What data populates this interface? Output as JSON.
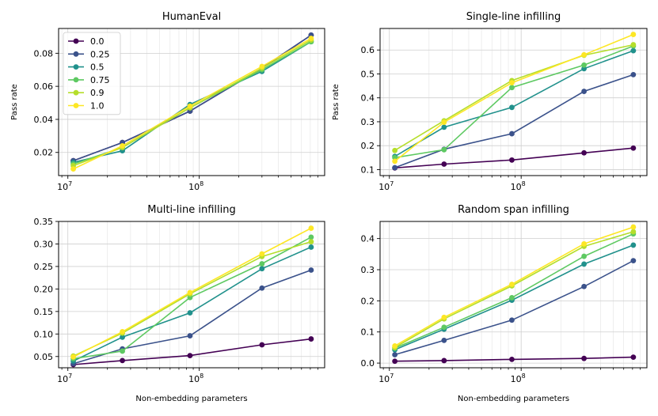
{
  "chart_data": [
    {
      "type": "line",
      "title": "HumanEval",
      "xlabel": "",
      "ylabel": "Pass rate",
      "xscale": "log",
      "x": [
        11000000,
        26000000,
        85000000,
        300000000,
        710000000
      ],
      "xlim": [
        8500000,
        900000000
      ],
      "xticks": [
        {
          "value": 10000000,
          "base": "10",
          "exp": "7"
        },
        {
          "value": 100000000,
          "base": "10",
          "exp": "8"
        }
      ],
      "ylim": [
        0.006,
        0.095
      ],
      "yticks": [
        "0.02",
        "0.04",
        "0.06",
        "0.08"
      ],
      "grid": true,
      "legend": "top-left",
      "series": [
        {
          "name": "0.0",
          "color": "#440154",
          "values": [
            0.015,
            0.026,
            0.045,
            0.071,
            0.091
          ]
        },
        {
          "name": "0.25",
          "color": "#3b528b",
          "values": [
            0.015,
            0.026,
            0.045,
            0.071,
            0.091
          ]
        },
        {
          "name": "0.5",
          "color": "#21918c",
          "values": [
            0.014,
            0.021,
            0.049,
            0.069,
            0.087
          ]
        },
        {
          "name": "0.75",
          "color": "#5ec962",
          "values": [
            0.013,
            0.023,
            0.047,
            0.07,
            0.087
          ]
        },
        {
          "name": "0.9",
          "color": "#b5de2b",
          "values": [
            0.012,
            0.023,
            0.047,
            0.071,
            0.088
          ]
        },
        {
          "name": "1.0",
          "color": "#fde725",
          "values": [
            0.01,
            0.024,
            0.048,
            0.072,
            0.089
          ]
        }
      ]
    },
    {
      "type": "line",
      "title": "Single-line infilling",
      "xlabel": "",
      "ylabel": "Pass rate",
      "xscale": "log",
      "x": [
        11000000,
        26000000,
        85000000,
        300000000,
        710000000
      ],
      "xlim": [
        8500000,
        900000000
      ],
      "xticks": [
        {
          "value": 10000000,
          "base": "10",
          "exp": "7"
        },
        {
          "value": 100000000,
          "base": "10",
          "exp": "8"
        }
      ],
      "ylim": [
        0.075,
        0.69
      ],
      "yticks": [
        "0.1",
        "0.2",
        "0.3",
        "0.4",
        "0.5",
        "0.6"
      ],
      "grid": true,
      "series": [
        {
          "name": "0.0",
          "color": "#440154",
          "values": [
            0.107,
            0.123,
            0.14,
            0.17,
            0.19
          ]
        },
        {
          "name": "0.25",
          "color": "#3b528b",
          "values": [
            0.108,
            0.185,
            0.25,
            0.427,
            0.497
          ]
        },
        {
          "name": "0.5",
          "color": "#21918c",
          "values": [
            0.155,
            0.277,
            0.36,
            0.522,
            0.597
          ]
        },
        {
          "name": "0.75",
          "color": "#5ec962",
          "values": [
            0.15,
            0.183,
            0.443,
            0.537,
            0.617
          ]
        },
        {
          "name": "0.9",
          "color": "#b5de2b",
          "values": [
            0.18,
            0.304,
            0.472,
            0.578,
            0.622
          ]
        },
        {
          "name": "1.0",
          "color": "#fde725",
          "values": [
            0.135,
            0.298,
            0.463,
            0.58,
            0.665
          ]
        }
      ]
    },
    {
      "type": "line",
      "title": "Multi-line infilling",
      "xlabel": "Non-embedding parameters",
      "ylabel": "",
      "xscale": "log",
      "x": [
        11000000,
        26000000,
        85000000,
        300000000,
        710000000
      ],
      "xlim": [
        8500000,
        900000000
      ],
      "xticks": [
        {
          "value": 10000000,
          "base": "10",
          "exp": "7"
        },
        {
          "value": 100000000,
          "base": "10",
          "exp": "8"
        }
      ],
      "ylim": [
        0.025,
        0.35
      ],
      "yticks": [
        "0.05",
        "0.10",
        "0.15",
        "0.20",
        "0.25",
        "0.30",
        "0.35"
      ],
      "grid": true,
      "series": [
        {
          "name": "0.0",
          "color": "#440154",
          "values": [
            0.032,
            0.041,
            0.052,
            0.076,
            0.089
          ]
        },
        {
          "name": "0.25",
          "color": "#3b528b",
          "values": [
            0.034,
            0.067,
            0.096,
            0.202,
            0.242
          ]
        },
        {
          "name": "0.5",
          "color": "#21918c",
          "values": [
            0.04,
            0.093,
            0.147,
            0.245,
            0.293
          ]
        },
        {
          "name": "0.75",
          "color": "#5ec962",
          "values": [
            0.045,
            0.062,
            0.181,
            0.256,
            0.315
          ]
        },
        {
          "name": "0.9",
          "color": "#b5de2b",
          "values": [
            0.051,
            0.102,
            0.189,
            0.272,
            0.305
          ]
        },
        {
          "name": "1.0",
          "color": "#fde725",
          "values": [
            0.049,
            0.105,
            0.192,
            0.278,
            0.335
          ]
        }
      ]
    },
    {
      "type": "line",
      "title": "Random span infilling",
      "xlabel": "Non-embedding parameters",
      "ylabel": "",
      "xscale": "log",
      "x": [
        11000000,
        26000000,
        85000000,
        300000000,
        710000000
      ],
      "xlim": [
        8500000,
        900000000
      ],
      "xticks": [
        {
          "value": 10000000,
          "base": "10",
          "exp": "7"
        },
        {
          "value": 100000000,
          "base": "10",
          "exp": "8"
        }
      ],
      "ylim": [
        -0.015,
        0.455
      ],
      "yticks": [
        "0.0",
        "0.1",
        "0.2",
        "0.3",
        "0.4"
      ],
      "grid": true,
      "series": [
        {
          "name": "0.0",
          "color": "#440154",
          "values": [
            0.006,
            0.008,
            0.012,
            0.015,
            0.019
          ]
        },
        {
          "name": "0.25",
          "color": "#3b528b",
          "values": [
            0.027,
            0.073,
            0.138,
            0.246,
            0.329
          ]
        },
        {
          "name": "0.5",
          "color": "#21918c",
          "values": [
            0.043,
            0.109,
            0.202,
            0.318,
            0.379
          ]
        },
        {
          "name": "0.75",
          "color": "#5ec962",
          "values": [
            0.048,
            0.115,
            0.21,
            0.343,
            0.415
          ]
        },
        {
          "name": "0.9",
          "color": "#b5de2b",
          "values": [
            0.05,
            0.142,
            0.248,
            0.375,
            0.422
          ]
        },
        {
          "name": "1.0",
          "color": "#fde725",
          "values": [
            0.055,
            0.147,
            0.253,
            0.383,
            0.437
          ]
        }
      ]
    }
  ]
}
